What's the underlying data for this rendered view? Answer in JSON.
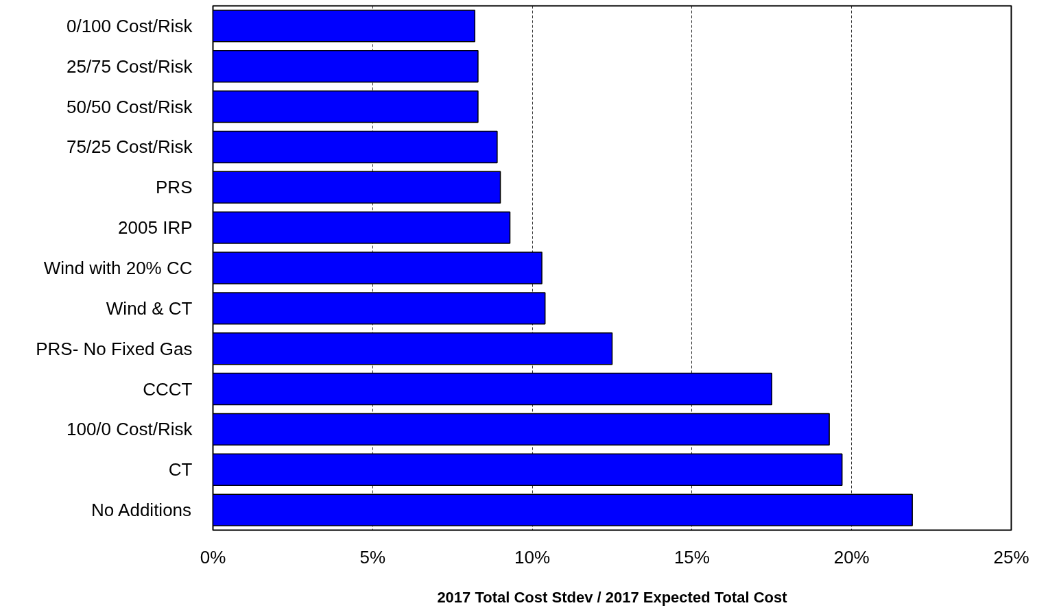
{
  "chart_data": {
    "type": "bar",
    "orientation": "horizontal",
    "categories": [
      "0/100 Cost/Risk",
      "25/75 Cost/Risk",
      "50/50 Cost/Risk",
      "75/25 Cost/Risk",
      "PRS",
      "2005 IRP",
      "Wind with 20% CC",
      "Wind & CT",
      "PRS- No Fixed Gas",
      "CCCT",
      "100/0 Cost/Risk",
      "CT",
      "No Additions"
    ],
    "values": [
      8.2,
      8.3,
      8.3,
      8.9,
      9.0,
      9.3,
      10.3,
      10.4,
      12.5,
      17.5,
      19.3,
      19.7,
      21.9
    ],
    "color": "#0000ff",
    "xlabel": "2017 Total Cost Stdev / 2017 Expected Total Cost",
    "xlim": [
      0,
      25
    ],
    "xticks": [
      {
        "value": 0,
        "label": "0%"
      },
      {
        "value": 5,
        "label": "5%"
      },
      {
        "value": 10,
        "label": "10%"
      },
      {
        "value": 15,
        "label": "15%"
      },
      {
        "value": 20,
        "label": "20%"
      },
      {
        "value": 25,
        "label": "25%"
      }
    ],
    "grid": "x"
  }
}
